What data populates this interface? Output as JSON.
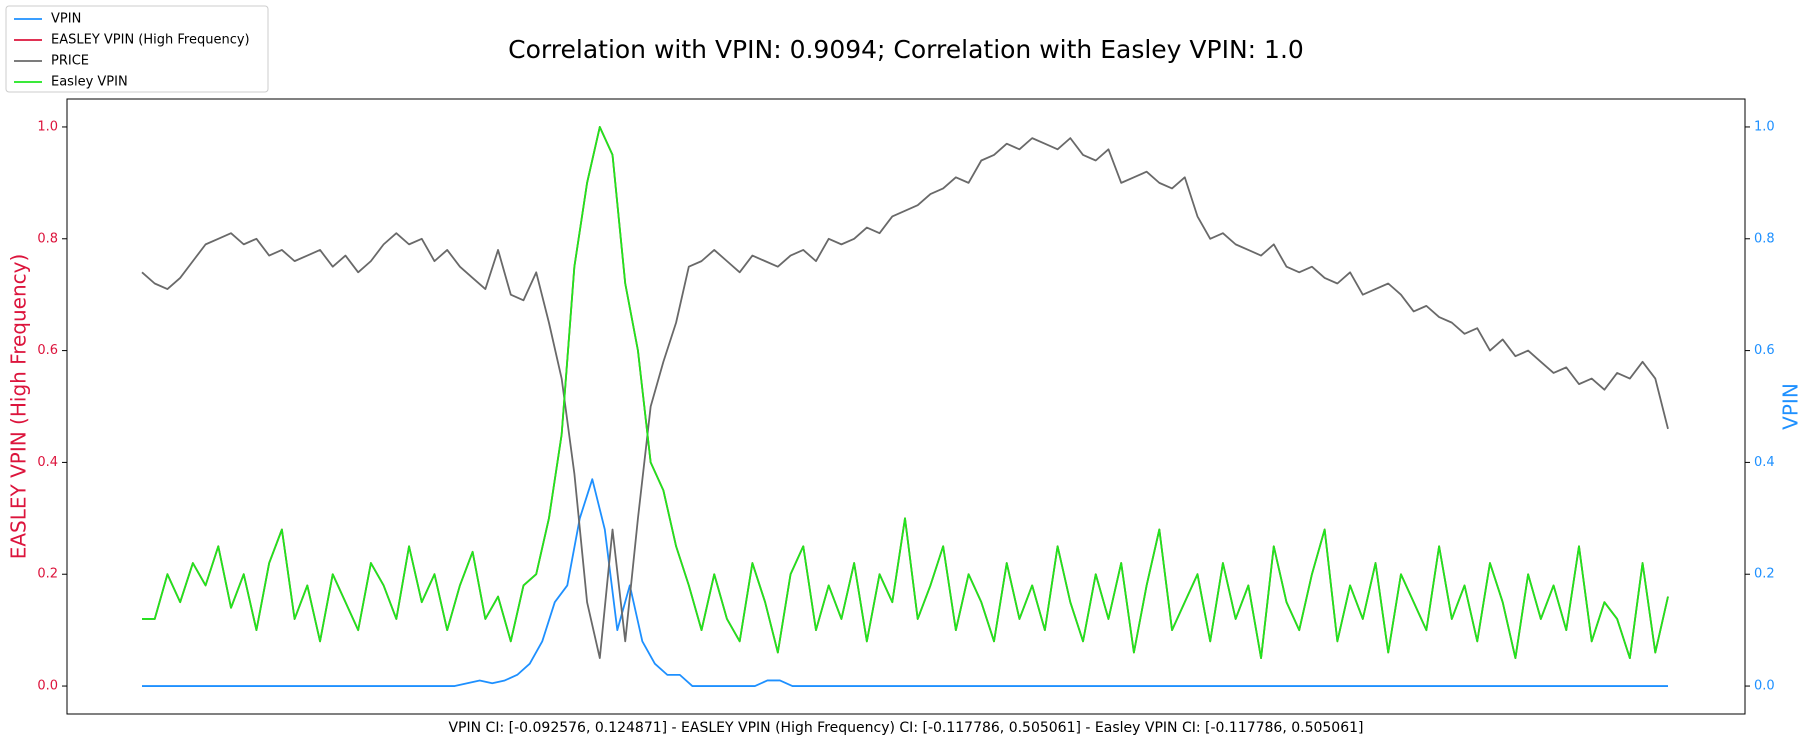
{
  "chart_data": {
    "type": "line",
    "title": "Correlation with VPIN: 0.9094; Correlation with Easley VPIN: 1.0",
    "caption": "VPIN CI: [-0.092576, 0.124871] - EASLEY VPIN (High Frequency) CI: [-0.117786, 0.505061] - Easley VPIN CI: [-0.117786, 0.505061]",
    "ylabel": "EASLEY VPIN (High Frequency)",
    "ylabel_color": "#dc143c",
    "y2label": "VPIN",
    "y2label_color": "#1e90ff",
    "ylim": [
      -0.05,
      1.05
    ],
    "y2lim": [
      -0.05,
      1.05
    ],
    "yticks": [
      {
        "value": 0,
        "label": "0.0"
      },
      0.2,
      0.4,
      0.6,
      0.8,
      {
        "value": 1,
        "label": "1.0"
      }
    ],
    "y2ticks": [
      {
        "value": 0,
        "label": "0.0"
      },
      0.2,
      0.4,
      0.6,
      0.8,
      {
        "value": 1,
        "label": "1.0"
      }
    ],
    "legend": "upper-left",
    "series": [
      {
        "name": "VPIN",
        "color": "#1e90ff",
        "axis": "y2",
        "values": [
          0,
          0,
          0,
          0,
          0,
          0,
          0,
          0,
          0,
          0,
          0,
          0,
          0,
          0,
          0,
          0,
          0,
          0,
          0,
          0,
          0,
          0,
          0,
          0,
          0,
          0,
          0.005,
          0.01,
          0.005,
          0.01,
          0.02,
          0.04,
          0.08,
          0.15,
          0.18,
          0.3,
          0.37,
          0.28,
          0.1,
          0.18,
          0.08,
          0.04,
          0.02,
          0.02,
          0,
          0,
          0,
          0,
          0,
          0,
          0.01,
          0.01,
          0,
          0,
          0,
          0,
          0,
          0,
          0,
          0,
          0,
          0,
          0,
          0,
          0,
          0,
          0,
          0,
          0,
          0,
          0,
          0,
          0,
          0,
          0,
          0,
          0,
          0,
          0,
          0,
          0,
          0,
          0,
          0,
          0,
          0,
          0,
          0,
          0,
          0,
          0,
          0,
          0,
          0,
          0,
          0,
          0,
          0,
          0,
          0,
          0,
          0,
          0,
          0,
          0,
          0,
          0,
          0,
          0,
          0,
          0,
          0,
          0,
          0,
          0,
          0,
          0,
          0,
          0,
          0,
          0,
          0,
          0
        ]
      },
      {
        "name": "EASLEY VPIN (High Frequency)",
        "color": "#dc143c",
        "values": [
          0.12,
          0.12,
          0.2,
          0.15,
          0.22,
          0.18,
          0.25,
          0.14,
          0.2,
          0.1,
          0.22,
          0.28,
          0.12,
          0.18,
          0.08,
          0.2,
          0.15,
          0.1,
          0.22,
          0.18,
          0.12,
          0.25,
          0.15,
          0.2,
          0.1,
          0.18,
          0.24,
          0.12,
          0.16,
          0.08,
          0.18,
          0.2,
          0.3,
          0.45,
          0.75,
          0.9,
          1.0,
          0.95,
          0.72,
          0.6,
          0.4,
          0.35,
          0.25,
          0.18,
          0.1,
          0.2,
          0.12,
          0.08,
          0.22,
          0.15,
          0.06,
          0.2,
          0.25,
          0.1,
          0.18,
          0.12,
          0.22,
          0.08,
          0.2,
          0.15,
          0.3,
          0.12,
          0.18,
          0.25,
          0.1,
          0.2,
          0.15,
          0.08,
          0.22,
          0.12,
          0.18,
          0.1,
          0.25,
          0.15,
          0.08,
          0.2,
          0.12,
          0.22,
          0.06,
          0.18,
          0.28,
          0.1,
          0.15,
          0.2,
          0.08,
          0.22,
          0.12,
          0.18,
          0.05,
          0.25,
          0.15,
          0.1,
          0.2,
          0.28,
          0.08,
          0.18,
          0.12,
          0.22,
          0.06,
          0.2,
          0.15,
          0.1,
          0.25,
          0.12,
          0.18,
          0.08,
          0.22,
          0.15,
          0.05,
          0.2,
          0.12,
          0.18,
          0.1,
          0.25,
          0.08,
          0.15,
          0.12,
          0.05,
          0.22,
          0.06,
          0.16
        ]
      },
      {
        "name": "PRICE",
        "color": "#696969",
        "values": [
          0.74,
          0.72,
          0.71,
          0.73,
          0.76,
          0.79,
          0.8,
          0.81,
          0.79,
          0.8,
          0.77,
          0.78,
          0.76,
          0.77,
          0.78,
          0.75,
          0.77,
          0.74,
          0.76,
          0.79,
          0.81,
          0.79,
          0.8,
          0.76,
          0.78,
          0.75,
          0.73,
          0.71,
          0.78,
          0.7,
          0.69,
          0.74,
          0.65,
          0.55,
          0.38,
          0.15,
          0.05,
          0.28,
          0.08,
          0.3,
          0.5,
          0.58,
          0.65,
          0.75,
          0.76,
          0.78,
          0.76,
          0.74,
          0.77,
          0.76,
          0.75,
          0.77,
          0.78,
          0.76,
          0.8,
          0.79,
          0.8,
          0.82,
          0.81,
          0.84,
          0.85,
          0.86,
          0.88,
          0.89,
          0.91,
          0.9,
          0.94,
          0.95,
          0.97,
          0.96,
          0.98,
          0.97,
          0.96,
          0.98,
          0.95,
          0.94,
          0.96,
          0.9,
          0.91,
          0.92,
          0.9,
          0.89,
          0.91,
          0.84,
          0.8,
          0.81,
          0.79,
          0.78,
          0.77,
          0.79,
          0.75,
          0.74,
          0.75,
          0.73,
          0.72,
          0.74,
          0.7,
          0.71,
          0.72,
          0.7,
          0.67,
          0.68,
          0.66,
          0.65,
          0.63,
          0.64,
          0.6,
          0.62,
          0.59,
          0.6,
          0.58,
          0.56,
          0.57,
          0.54,
          0.55,
          0.53,
          0.56,
          0.55,
          0.58,
          0.55,
          0.46
        ]
      },
      {
        "name": "Easley VPIN",
        "color": "#1ee61e",
        "values": [
          0.12,
          0.12,
          0.2,
          0.15,
          0.22,
          0.18,
          0.25,
          0.14,
          0.2,
          0.1,
          0.22,
          0.28,
          0.12,
          0.18,
          0.08,
          0.2,
          0.15,
          0.1,
          0.22,
          0.18,
          0.12,
          0.25,
          0.15,
          0.2,
          0.1,
          0.18,
          0.24,
          0.12,
          0.16,
          0.08,
          0.18,
          0.2,
          0.3,
          0.45,
          0.75,
          0.9,
          1.0,
          0.95,
          0.72,
          0.6,
          0.4,
          0.35,
          0.25,
          0.18,
          0.1,
          0.2,
          0.12,
          0.08,
          0.22,
          0.15,
          0.06,
          0.2,
          0.25,
          0.1,
          0.18,
          0.12,
          0.22,
          0.08,
          0.2,
          0.15,
          0.3,
          0.12,
          0.18,
          0.25,
          0.1,
          0.2,
          0.15,
          0.08,
          0.22,
          0.12,
          0.18,
          0.1,
          0.25,
          0.15,
          0.08,
          0.2,
          0.12,
          0.22,
          0.06,
          0.18,
          0.28,
          0.1,
          0.15,
          0.2,
          0.08,
          0.22,
          0.12,
          0.18,
          0.05,
          0.25,
          0.15,
          0.1,
          0.2,
          0.28,
          0.08,
          0.18,
          0.12,
          0.22,
          0.06,
          0.2,
          0.15,
          0.1,
          0.25,
          0.12,
          0.18,
          0.08,
          0.22,
          0.15,
          0.05,
          0.2,
          0.12,
          0.18,
          0.1,
          0.25,
          0.08,
          0.15,
          0.12,
          0.05,
          0.22,
          0.06,
          0.16
        ]
      }
    ]
  }
}
